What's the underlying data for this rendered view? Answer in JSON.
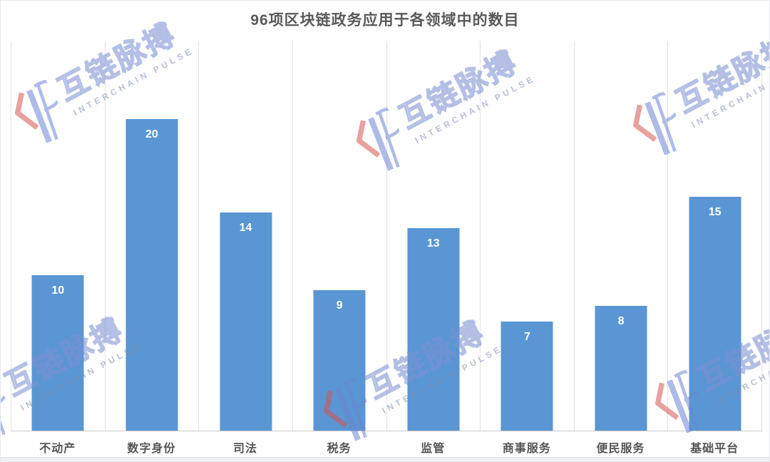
{
  "page": {
    "title": "96项区块链政务应用于各领域中的数目"
  },
  "chart_data": {
    "type": "bar",
    "title": "96项区块链政务应用于各领域中的数目",
    "categories": [
      "不动产",
      "数字身份",
      "司法",
      "税务",
      "监管",
      "商事服务",
      "便民服务",
      "基础平台"
    ],
    "values": [
      10,
      20,
      14,
      9,
      13,
      7,
      8,
      15
    ],
    "total": 96,
    "xlabel": "",
    "ylabel": "",
    "ylim": [
      0,
      25
    ],
    "grid": "vertical category separators only",
    "legend": "none",
    "value_labels": "white, bold, inside top of each bar",
    "bar_color": "#5996D3",
    "value_label_color": "#FFFFFF",
    "title_color": "#595959",
    "axis_label_color": "#555555",
    "gridline_color": "#E2E2E2",
    "baseline_color": "#C9C9C9"
  },
  "watermark": {
    "icon": "interchain-pulse-ip-logo",
    "cn": "互链脉搏",
    "en": "INTERCHAIN PULSE",
    "accent_red": "#D65550",
    "accent_blue": "#6E84D4"
  }
}
